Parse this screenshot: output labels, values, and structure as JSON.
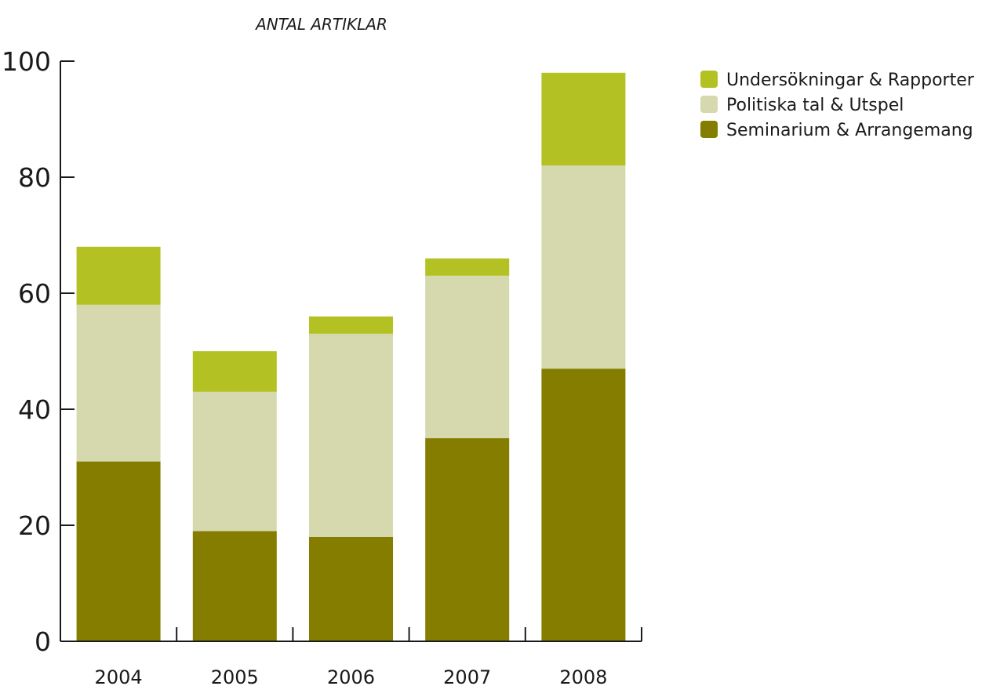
{
  "chart_data": {
    "type": "bar",
    "stacked": true,
    "title": "ANTAL ARTIKLAR",
    "xlabel": "",
    "ylabel": "",
    "categories": [
      "2004",
      "2005",
      "2006",
      "2007",
      "2008"
    ],
    "ylim": [
      0,
      100
    ],
    "yticks": [
      "0",
      "20",
      "40",
      "60",
      "80",
      "100"
    ],
    "grid": false,
    "legend_position": "top-right",
    "series": [
      {
        "name": "Seminarium & Arrangemang",
        "values": [
          31,
          19,
          18,
          35,
          47
        ],
        "color": "#857d00"
      },
      {
        "name": "Politiska tal & Utspel",
        "values": [
          27,
          24,
          35,
          28,
          35
        ],
        "color": "#d6d8ae"
      },
      {
        "name": "Undersökningar & Rapporter",
        "values": [
          10,
          7,
          3,
          3,
          16
        ],
        "color": "#b3c123"
      }
    ],
    "legend_order": [
      "Undersökningar & Rapporter",
      "Politiska tal & Utspel",
      "Seminarium & Arrangemang"
    ]
  }
}
